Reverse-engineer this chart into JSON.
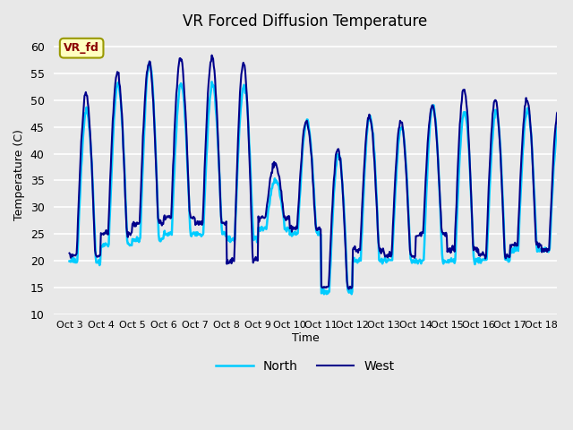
{
  "title": "VR Forced Diffusion Temperature",
  "xlabel": "Time",
  "ylabel": "Temperature (C)",
  "legend_label_west": "West",
  "legend_label_north": "North",
  "color_west": "#00008B",
  "color_north": "#00CCFF",
  "annotation_text": "VR_fd",
  "annotation_bg": "#FFFFC0",
  "annotation_border": "#999900",
  "annotation_text_color": "#8B0000",
  "ylim": [
    10,
    62
  ],
  "yticks": [
    10,
    15,
    20,
    25,
    30,
    35,
    40,
    45,
    50,
    55,
    60
  ],
  "xtick_labels": [
    "Oct 3",
    "Oct 4",
    "Oct 5",
    "Oct 6",
    "Oct 7",
    "Oct 8",
    "Oct 9",
    "Oct 10",
    "Oct 11",
    "Oct 12",
    "Oct 13",
    "Oct 14",
    "Oct 15",
    "Oct 16",
    "Oct 17",
    "Oct 18"
  ],
  "bg_color": "#E8E8E8",
  "plot_bg_color": "#E8E8E8",
  "grid_color": "#FFFFFF",
  "linewidth_west": 1.5,
  "linewidth_north": 1.8,
  "day_peaks_west": [
    51,
    55,
    57,
    58,
    58,
    57,
    38,
    46,
    41,
    47,
    46,
    49,
    52,
    50,
    50,
    48
  ],
  "day_peaks_north": [
    48,
    53,
    57,
    53,
    53,
    53,
    35,
    46,
    40,
    47,
    45,
    49,
    48,
    48,
    48,
    46
  ],
  "night_low_west": [
    21,
    25,
    27,
    28,
    27,
    20,
    28,
    26,
    15,
    22,
    21,
    25,
    22,
    21,
    23,
    22
  ],
  "night_low_north": [
    20,
    23,
    24,
    25,
    25,
    24,
    26,
    25,
    14,
    20,
    20,
    20,
    20,
    20,
    22,
    22
  ]
}
